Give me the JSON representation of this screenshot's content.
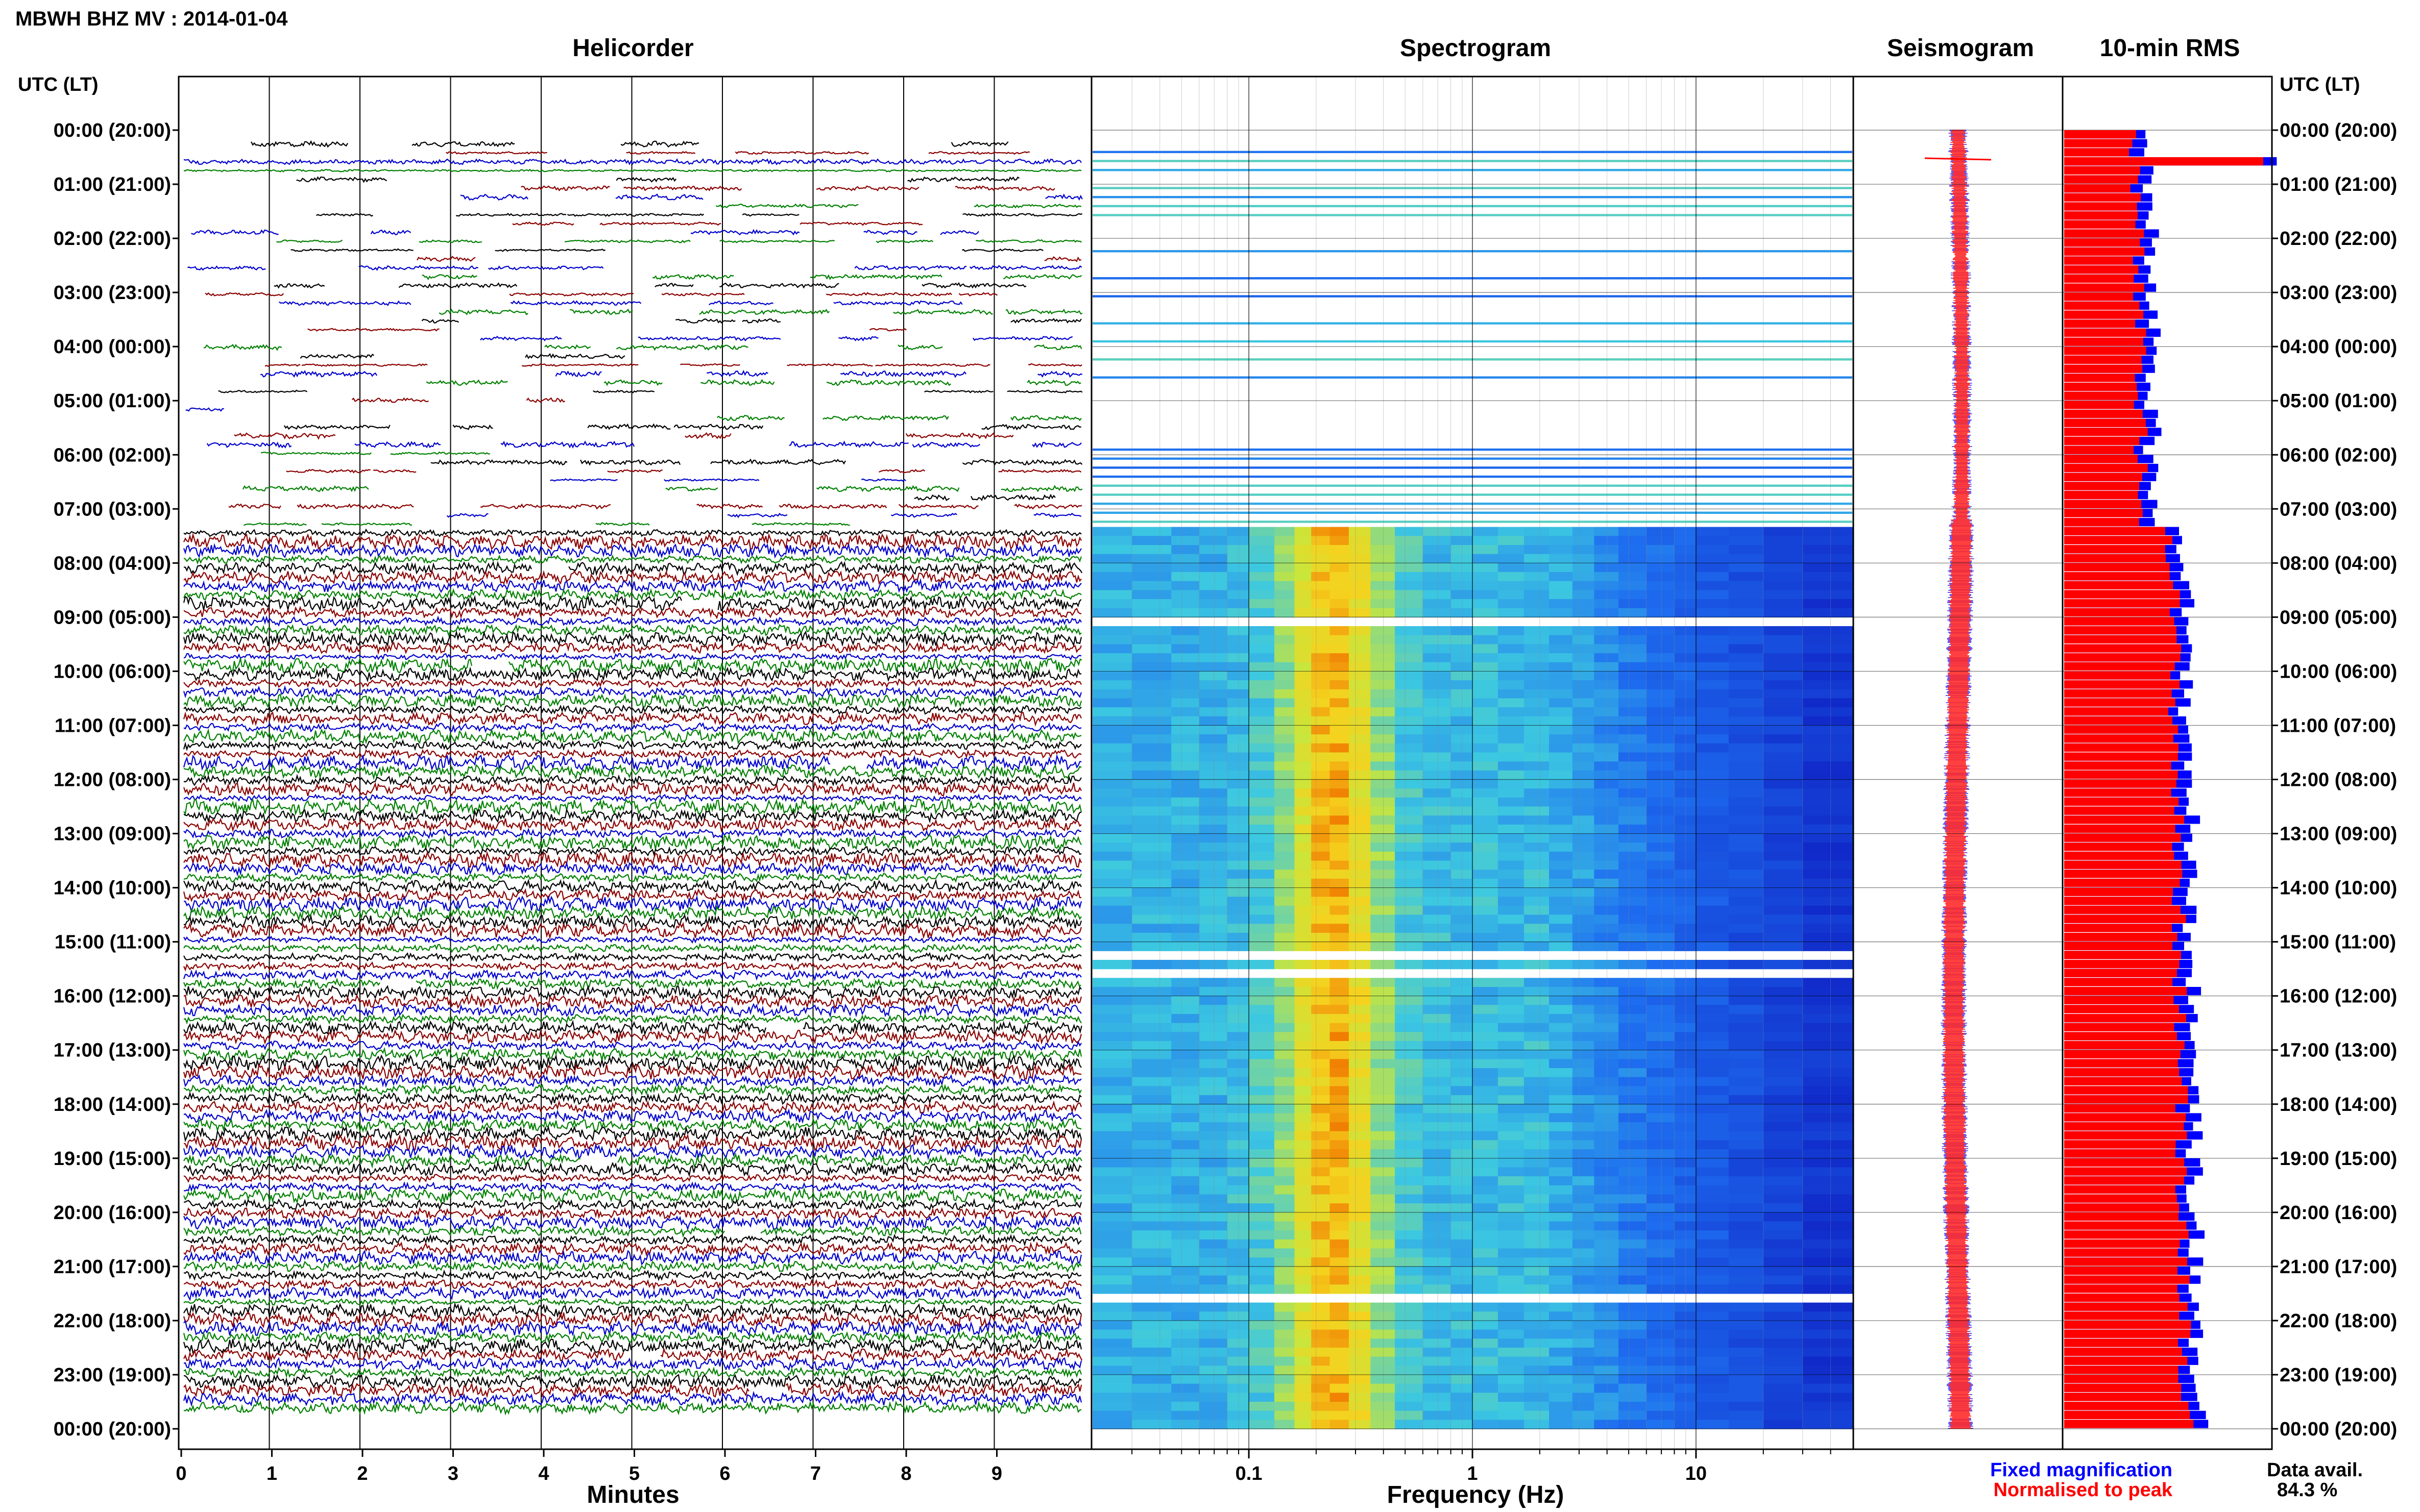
{
  "title": "MBWH BHZ MV : 2014-01-04",
  "utc_header": "UTC (LT)",
  "legend": {
    "fixed_label": "Fixed magnification",
    "normalised_label": "Normalised to peak",
    "fixed_color": "#0000ff",
    "normalised_color": "#ff0000"
  },
  "data_avail": {
    "label": "Data avail.",
    "value": "84.3 %"
  },
  "colors": {
    "trace_cycle": [
      "#000000",
      "#8b0000",
      "#0000cd",
      "#008000"
    ],
    "spectrogram_low": "#1030d0",
    "spectrogram_mid": "#40c8e0",
    "spectrogram_high": "#f0e020",
    "spectrogram_peak": "#f08000"
  },
  "chart_data": [
    {
      "type": "line",
      "panel": "Helicorder",
      "title": "Helicorder",
      "xlabel": "Minutes",
      "xticks": [
        "0",
        "1",
        "2",
        "3",
        "4",
        "5",
        "6",
        "7",
        "8",
        "9"
      ],
      "xlim": [
        0,
        10
      ],
      "rows_per_hour": 6,
      "row_minutes": 10,
      "first_continuous_row": 44
    },
    {
      "type": "heatmap",
      "panel": "Spectrogram",
      "title": "Spectrogram",
      "xlabel": "Frequency (Hz)",
      "xscale": "log",
      "xlim": [
        0.02,
        50
      ],
      "xticks": [
        "0.1",
        "1",
        "10"
      ],
      "dominant_band_hz": [
        0.18,
        0.3
      ]
    },
    {
      "type": "line",
      "panel": "Seismogram",
      "title": "Seismogram"
    },
    {
      "type": "bar",
      "panel": "10-min RMS",
      "title": "10-min RMS",
      "series": [
        {
          "name": "Fixed magnification"
        },
        {
          "name": "Normalised to peak"
        }
      ]
    }
  ],
  "hour_labels": [
    "00:00 (20:00)",
    "01:00 (21:00)",
    "02:00 (22:00)",
    "03:00 (23:00)",
    "04:00 (00:00)",
    "05:00 (01:00)",
    "06:00 (02:00)",
    "07:00 (03:00)",
    "08:00 (04:00)",
    "09:00 (05:00)",
    "10:00 (06:00)",
    "11:00 (07:00)",
    "12:00 (08:00)",
    "13:00 (09:00)",
    "14:00 (10:00)",
    "15:00 (11:00)",
    "16:00 (12:00)",
    "17:00 (13:00)",
    "18:00 (14:00)",
    "19:00 (15:00)",
    "20:00 (16:00)",
    "21:00 (17:00)",
    "22:00 (18:00)",
    "23:00 (19:00)",
    "00:00 (20:00)"
  ]
}
